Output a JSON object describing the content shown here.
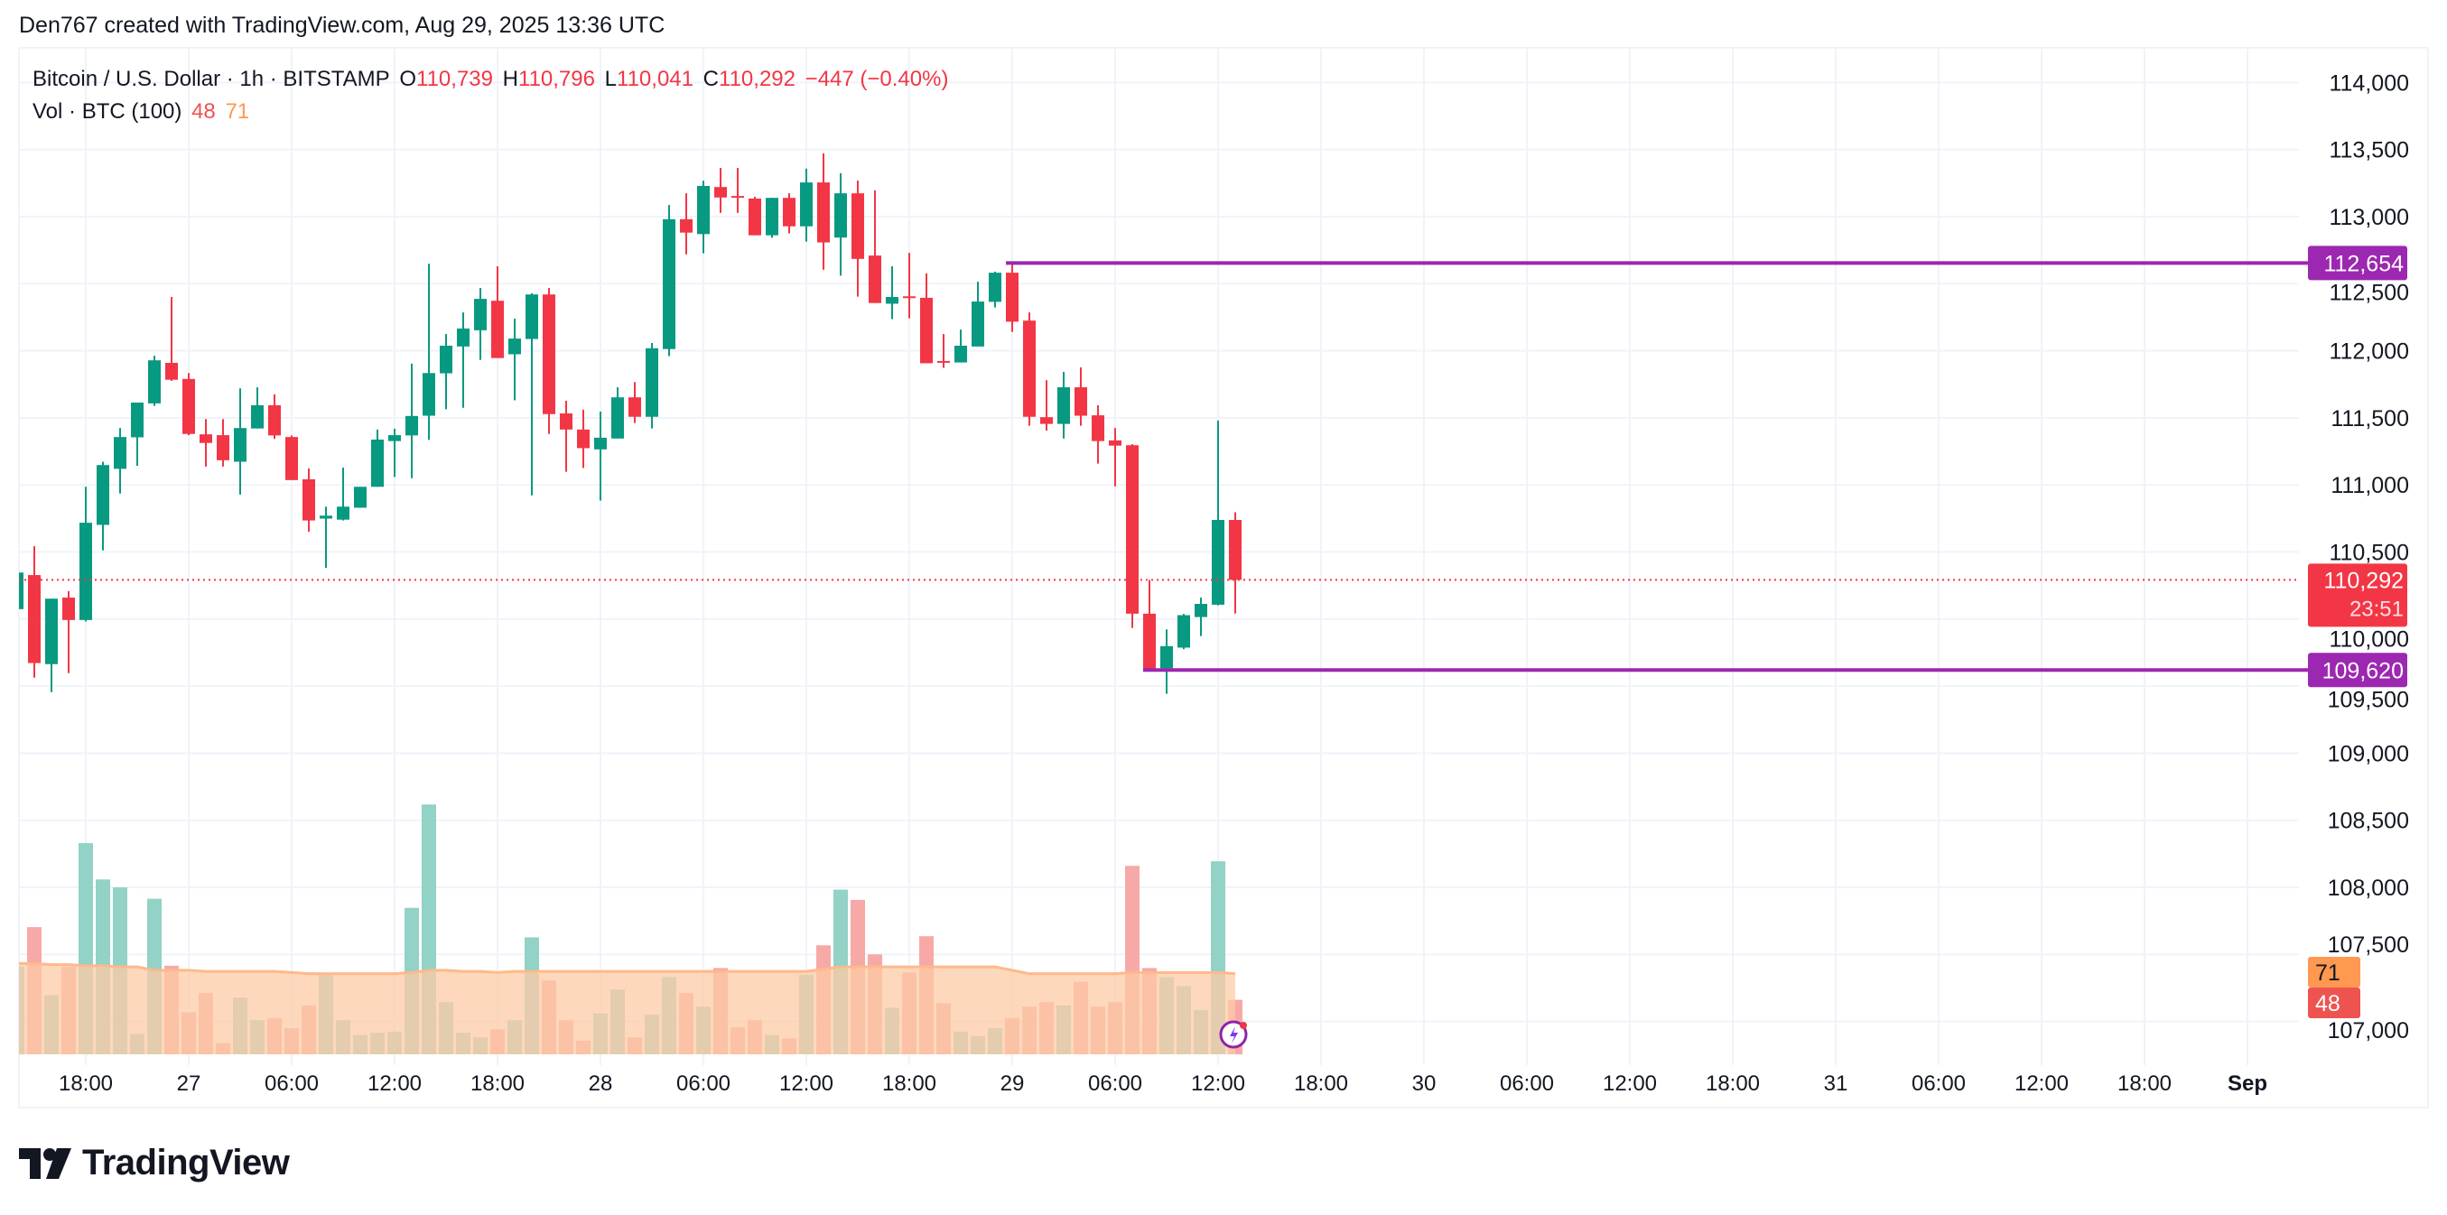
{
  "attribution": "Den767 created with TradingView.com, Aug 29, 2025 13:36 UTC",
  "legend": {
    "symbol": "Bitcoin / U.S. Dollar · 1h · BITSTAMP",
    "o_label": "O",
    "o": "110,739",
    "h_label": "H",
    "h": "110,796",
    "l_label": "L",
    "l": "110,041",
    "c_label": "C",
    "c": "110,292",
    "change": "−447 (−0.40%)",
    "vol_label": "Vol · BTC (100)",
    "vol_value": "48",
    "vol_ma": "71"
  },
  "logo": "TradingView",
  "colors": {
    "up": "#089981",
    "down": "#f23645",
    "level": "#9c27b0",
    "vol_up": "#92d2c7",
    "vol_down": "#f7a9a7",
    "ma_fill": "#fdcba6",
    "ma_line": "#ffb98a"
  },
  "price_axis": {
    "ticks": [
      "114,000",
      "113,500",
      "113,000",
      "112,500",
      "112,000",
      "111,500",
      "111,000",
      "110,500",
      "110,000",
      "109,500",
      "109,000",
      "108,500",
      "108,000",
      "107,500",
      "107,000"
    ],
    "tick_values": [
      114000,
      113500,
      113000,
      112500,
      112000,
      111500,
      111000,
      110500,
      110000,
      109500,
      109000,
      108500,
      108000,
      107500,
      107000
    ],
    "last_price_label": "110,292",
    "countdown": "23:51",
    "level_high_label": "112,654",
    "level_low_label": "109,620",
    "vol_ma_label": "71",
    "vol_label": "48"
  },
  "chart_data": {
    "type": "candlestick",
    "title": "Bitcoin / U.S. Dollar · 1h · BITSTAMP",
    "ylim": [
      106800,
      114200
    ],
    "levels": [
      {
        "value": 112654,
        "from_candle": 58
      },
      {
        "value": 109620,
        "from_candle": 66
      }
    ],
    "last_price": 110292,
    "candle_fields": [
      "open",
      "high",
      "low",
      "close",
      "volume"
    ],
    "candles": [
      [
        110074,
        110347,
        110074,
        110347,
        77
      ],
      [
        110328,
        110543,
        109563,
        109672,
        112
      ],
      [
        109664,
        110152,
        109455,
        110152,
        52
      ],
      [
        110160,
        110208,
        109597,
        109993,
        77
      ],
      [
        109993,
        110986,
        109982,
        110718,
        186
      ],
      [
        110702,
        111173,
        110512,
        111148,
        154
      ],
      [
        111120,
        111424,
        110936,
        111357,
        147
      ],
      [
        111355,
        111614,
        111143,
        111614,
        18
      ],
      [
        111608,
        111963,
        111589,
        111929,
        137
      ],
      [
        111910,
        112401,
        111776,
        111784,
        78
      ],
      [
        111790,
        111834,
        111371,
        111380,
        37
      ],
      [
        111377,
        111491,
        111137,
        111313,
        54
      ],
      [
        111371,
        111491,
        111137,
        111184,
        10
      ],
      [
        111173,
        111720,
        110928,
        111424,
        50
      ],
      [
        111421,
        111728,
        111421,
        111594,
        30
      ],
      [
        111594,
        111675,
        111343,
        111369,
        32
      ],
      [
        111357,
        111369,
        111036,
        111036,
        23
      ],
      [
        111042,
        111123,
        110651,
        110735,
        43
      ],
      [
        110749,
        110838,
        110381,
        110771,
        71
      ],
      [
        110741,
        111129,
        110735,
        110838,
        30
      ],
      [
        110830,
        110986,
        110830,
        110986,
        17
      ],
      [
        110986,
        111413,
        110986,
        111338,
        19
      ],
      [
        111327,
        111419,
        111059,
        111371,
        20
      ],
      [
        111369,
        111904,
        111050,
        111514,
        129
      ],
      [
        111516,
        112649,
        111335,
        111834,
        220
      ],
      [
        111832,
        112125,
        111564,
        112038,
        46
      ],
      [
        112032,
        112286,
        111575,
        112166,
        19
      ],
      [
        112153,
        112468,
        111932,
        112387,
        15
      ],
      [
        112373,
        112630,
        111946,
        111946,
        22
      ],
      [
        111974,
        112239,
        111631,
        112091,
        30
      ],
      [
        112088,
        112429,
        110922,
        112420,
        103
      ],
      [
        112420,
        112468,
        111380,
        111528,
        65
      ],
      [
        111533,
        111628,
        111098,
        111413,
        30
      ],
      [
        111413,
        111561,
        111126,
        111274,
        12
      ],
      [
        111265,
        111547,
        110883,
        111352,
        36
      ],
      [
        111346,
        111728,
        111346,
        111653,
        57
      ],
      [
        111653,
        111767,
        111461,
        111508,
        15
      ],
      [
        111508,
        112058,
        111421,
        112019,
        35
      ],
      [
        112013,
        113087,
        111960,
        112981,
        68
      ],
      [
        112981,
        113174,
        112719,
        112881,
        54
      ],
      [
        112870,
        113268,
        112727,
        113229,
        42
      ],
      [
        113221,
        113363,
        113028,
        113143,
        76
      ],
      [
        113154,
        113363,
        113028,
        113143,
        24
      ],
      [
        113135,
        113148,
        112861,
        112861,
        30
      ],
      [
        112861,
        113140,
        112842,
        113140,
        17
      ],
      [
        113140,
        113174,
        112875,
        112928,
        14
      ],
      [
        112928,
        113358,
        112814,
        113255,
        70
      ],
      [
        113255,
        113472,
        112604,
        112808,
        96
      ],
      [
        112844,
        113324,
        112560,
        113174,
        145
      ],
      [
        113174,
        113268,
        112404,
        112685,
        136
      ],
      [
        112710,
        113196,
        112356,
        112356,
        88
      ],
      [
        112351,
        112630,
        112236,
        112401,
        41
      ],
      [
        112406,
        112730,
        112242,
        112398,
        72
      ],
      [
        112395,
        112577,
        111907,
        111907,
        104
      ],
      [
        111924,
        112125,
        111873,
        111913,
        45
      ],
      [
        111913,
        112158,
        111913,
        112038,
        20
      ],
      [
        112032,
        112515,
        112032,
        112367,
        16
      ],
      [
        112365,
        112590,
        112323,
        112582,
        23
      ],
      [
        112582,
        112654,
        112141,
        112217,
        32
      ],
      [
        112225,
        112286,
        111441,
        111508,
        42
      ],
      [
        111505,
        111781,
        111405,
        111455,
        46
      ],
      [
        111455,
        111843,
        111346,
        111728,
        43
      ],
      [
        111728,
        111876,
        111441,
        111516,
        64
      ],
      [
        111519,
        111594,
        111159,
        111327,
        42
      ],
      [
        111332,
        111424,
        110989,
        111293,
        46
      ],
      [
        111296,
        111304,
        109934,
        110040,
        166
      ],
      [
        110040,
        110292,
        109620,
        109630,
        76
      ],
      [
        109633,
        109923,
        109443,
        109798,
        68
      ],
      [
        109787,
        110038,
        109775,
        110029,
        60
      ],
      [
        110015,
        110160,
        109873,
        110113,
        39
      ],
      [
        110107,
        111480,
        110102,
        110739,
        170
      ],
      [
        110739,
        110796,
        110041,
        110292,
        48
      ]
    ],
    "volume_ma": [
      80,
      80,
      79,
      79,
      78,
      78,
      77,
      77,
      74,
      74,
      74,
      73,
      73,
      73,
      73,
      73,
      72,
      71,
      71,
      71,
      71,
      71,
      71,
      72,
      74,
      74,
      73,
      73,
      72,
      73,
      73,
      73,
      73,
      73,
      73,
      73,
      73,
      73,
      73,
      73,
      73,
      73,
      73,
      73,
      73,
      73,
      73,
      75,
      77,
      77,
      77,
      77,
      77,
      77,
      77,
      77,
      77,
      77,
      74,
      71,
      71,
      71,
      71,
      71,
      71,
      72,
      72,
      72,
      72,
      72,
      72,
      71
    ],
    "x_ticks": [
      {
        "label": "18:00",
        "candle_index": 4
      },
      {
        "label": "27",
        "candle_index": 10
      },
      {
        "label": "06:00",
        "candle_index": 16
      },
      {
        "label": "12:00",
        "candle_index": 22
      },
      {
        "label": "18:00",
        "candle_index": 28
      },
      {
        "label": "28",
        "candle_index": 34
      },
      {
        "label": "06:00",
        "candle_index": 40
      },
      {
        "label": "12:00",
        "candle_index": 46
      },
      {
        "label": "18:00",
        "candle_index": 52
      },
      {
        "label": "29",
        "candle_index": 58
      },
      {
        "label": "06:00",
        "candle_index": 64
      },
      {
        "label": "12:00",
        "candle_index": 70
      },
      {
        "label": "18:00",
        "candle_index": 76
      },
      {
        "label": "30",
        "candle_index": 82
      },
      {
        "label": "06:00",
        "candle_index": 88
      },
      {
        "label": "12:00",
        "candle_index": 94
      },
      {
        "label": "18:00",
        "candle_index": 100
      },
      {
        "label": "31",
        "candle_index": 106
      },
      {
        "label": "06:00",
        "candle_index": 112
      },
      {
        "label": "12:00",
        "candle_index": 118
      },
      {
        "label": "18:00",
        "candle_index": 124
      },
      {
        "label": "Sep",
        "candle_index": 130
      }
    ]
  }
}
